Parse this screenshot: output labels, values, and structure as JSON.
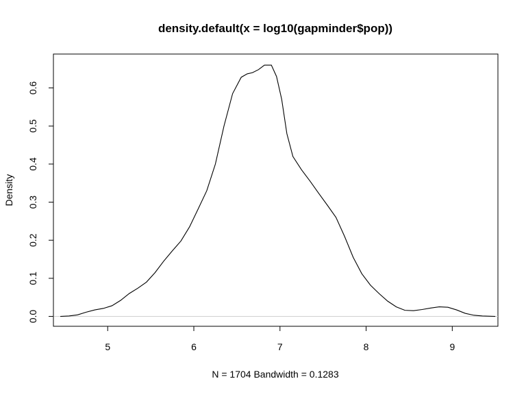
{
  "chart_data": {
    "type": "line",
    "title": "density.default(x = log10(gapminder$pop))",
    "xlabel": "N = 1704   Bandwidth = 0.1283",
    "ylabel": "Density",
    "xlim": [
      4.37,
      9.53
    ],
    "ylim": [
      -0.026,
      0.689
    ],
    "x_ticks": [
      5,
      6,
      7,
      8,
      9
    ],
    "y_ticks": [
      0.0,
      0.1,
      0.2,
      0.3,
      0.4,
      0.5,
      0.6
    ],
    "x_tick_labels": [
      "5",
      "6",
      "7",
      "8",
      "9"
    ],
    "y_tick_labels": [
      "0.0",
      "0.1",
      "0.2",
      "0.3",
      "0.4",
      "0.5",
      "0.6"
    ],
    "grid": false,
    "baseline": 0,
    "series": [
      {
        "x": [
          4.45,
          4.55,
          4.65,
          4.75,
          4.85,
          4.95,
          5.05,
          5.15,
          5.25,
          5.35,
          5.45,
          5.55,
          5.65,
          5.75,
          5.85,
          5.95,
          6.05,
          6.15,
          6.25,
          6.35,
          6.45,
          6.55,
          6.62,
          6.68,
          6.75,
          6.82,
          6.9,
          6.96,
          7.02,
          7.08,
          7.15,
          7.25,
          7.35,
          7.45,
          7.55,
          7.65,
          7.75,
          7.85,
          7.95,
          8.05,
          8.15,
          8.25,
          8.35,
          8.45,
          8.55,
          8.65,
          8.75,
          8.85,
          8.95,
          9.05,
          9.15,
          9.25,
          9.35,
          9.5
        ],
        "y": [
          0.0,
          0.001,
          0.004,
          0.011,
          0.017,
          0.021,
          0.028,
          0.042,
          0.06,
          0.074,
          0.09,
          0.115,
          0.145,
          0.172,
          0.198,
          0.235,
          0.282,
          0.33,
          0.4,
          0.5,
          0.585,
          0.628,
          0.637,
          0.64,
          0.648,
          0.66,
          0.66,
          0.63,
          0.57,
          0.48,
          0.42,
          0.385,
          0.355,
          0.323,
          0.292,
          0.26,
          0.21,
          0.155,
          0.112,
          0.082,
          0.06,
          0.04,
          0.025,
          0.016,
          0.015,
          0.018,
          0.022,
          0.025,
          0.024,
          0.017,
          0.008,
          0.003,
          0.001,
          0.0
        ]
      }
    ]
  }
}
